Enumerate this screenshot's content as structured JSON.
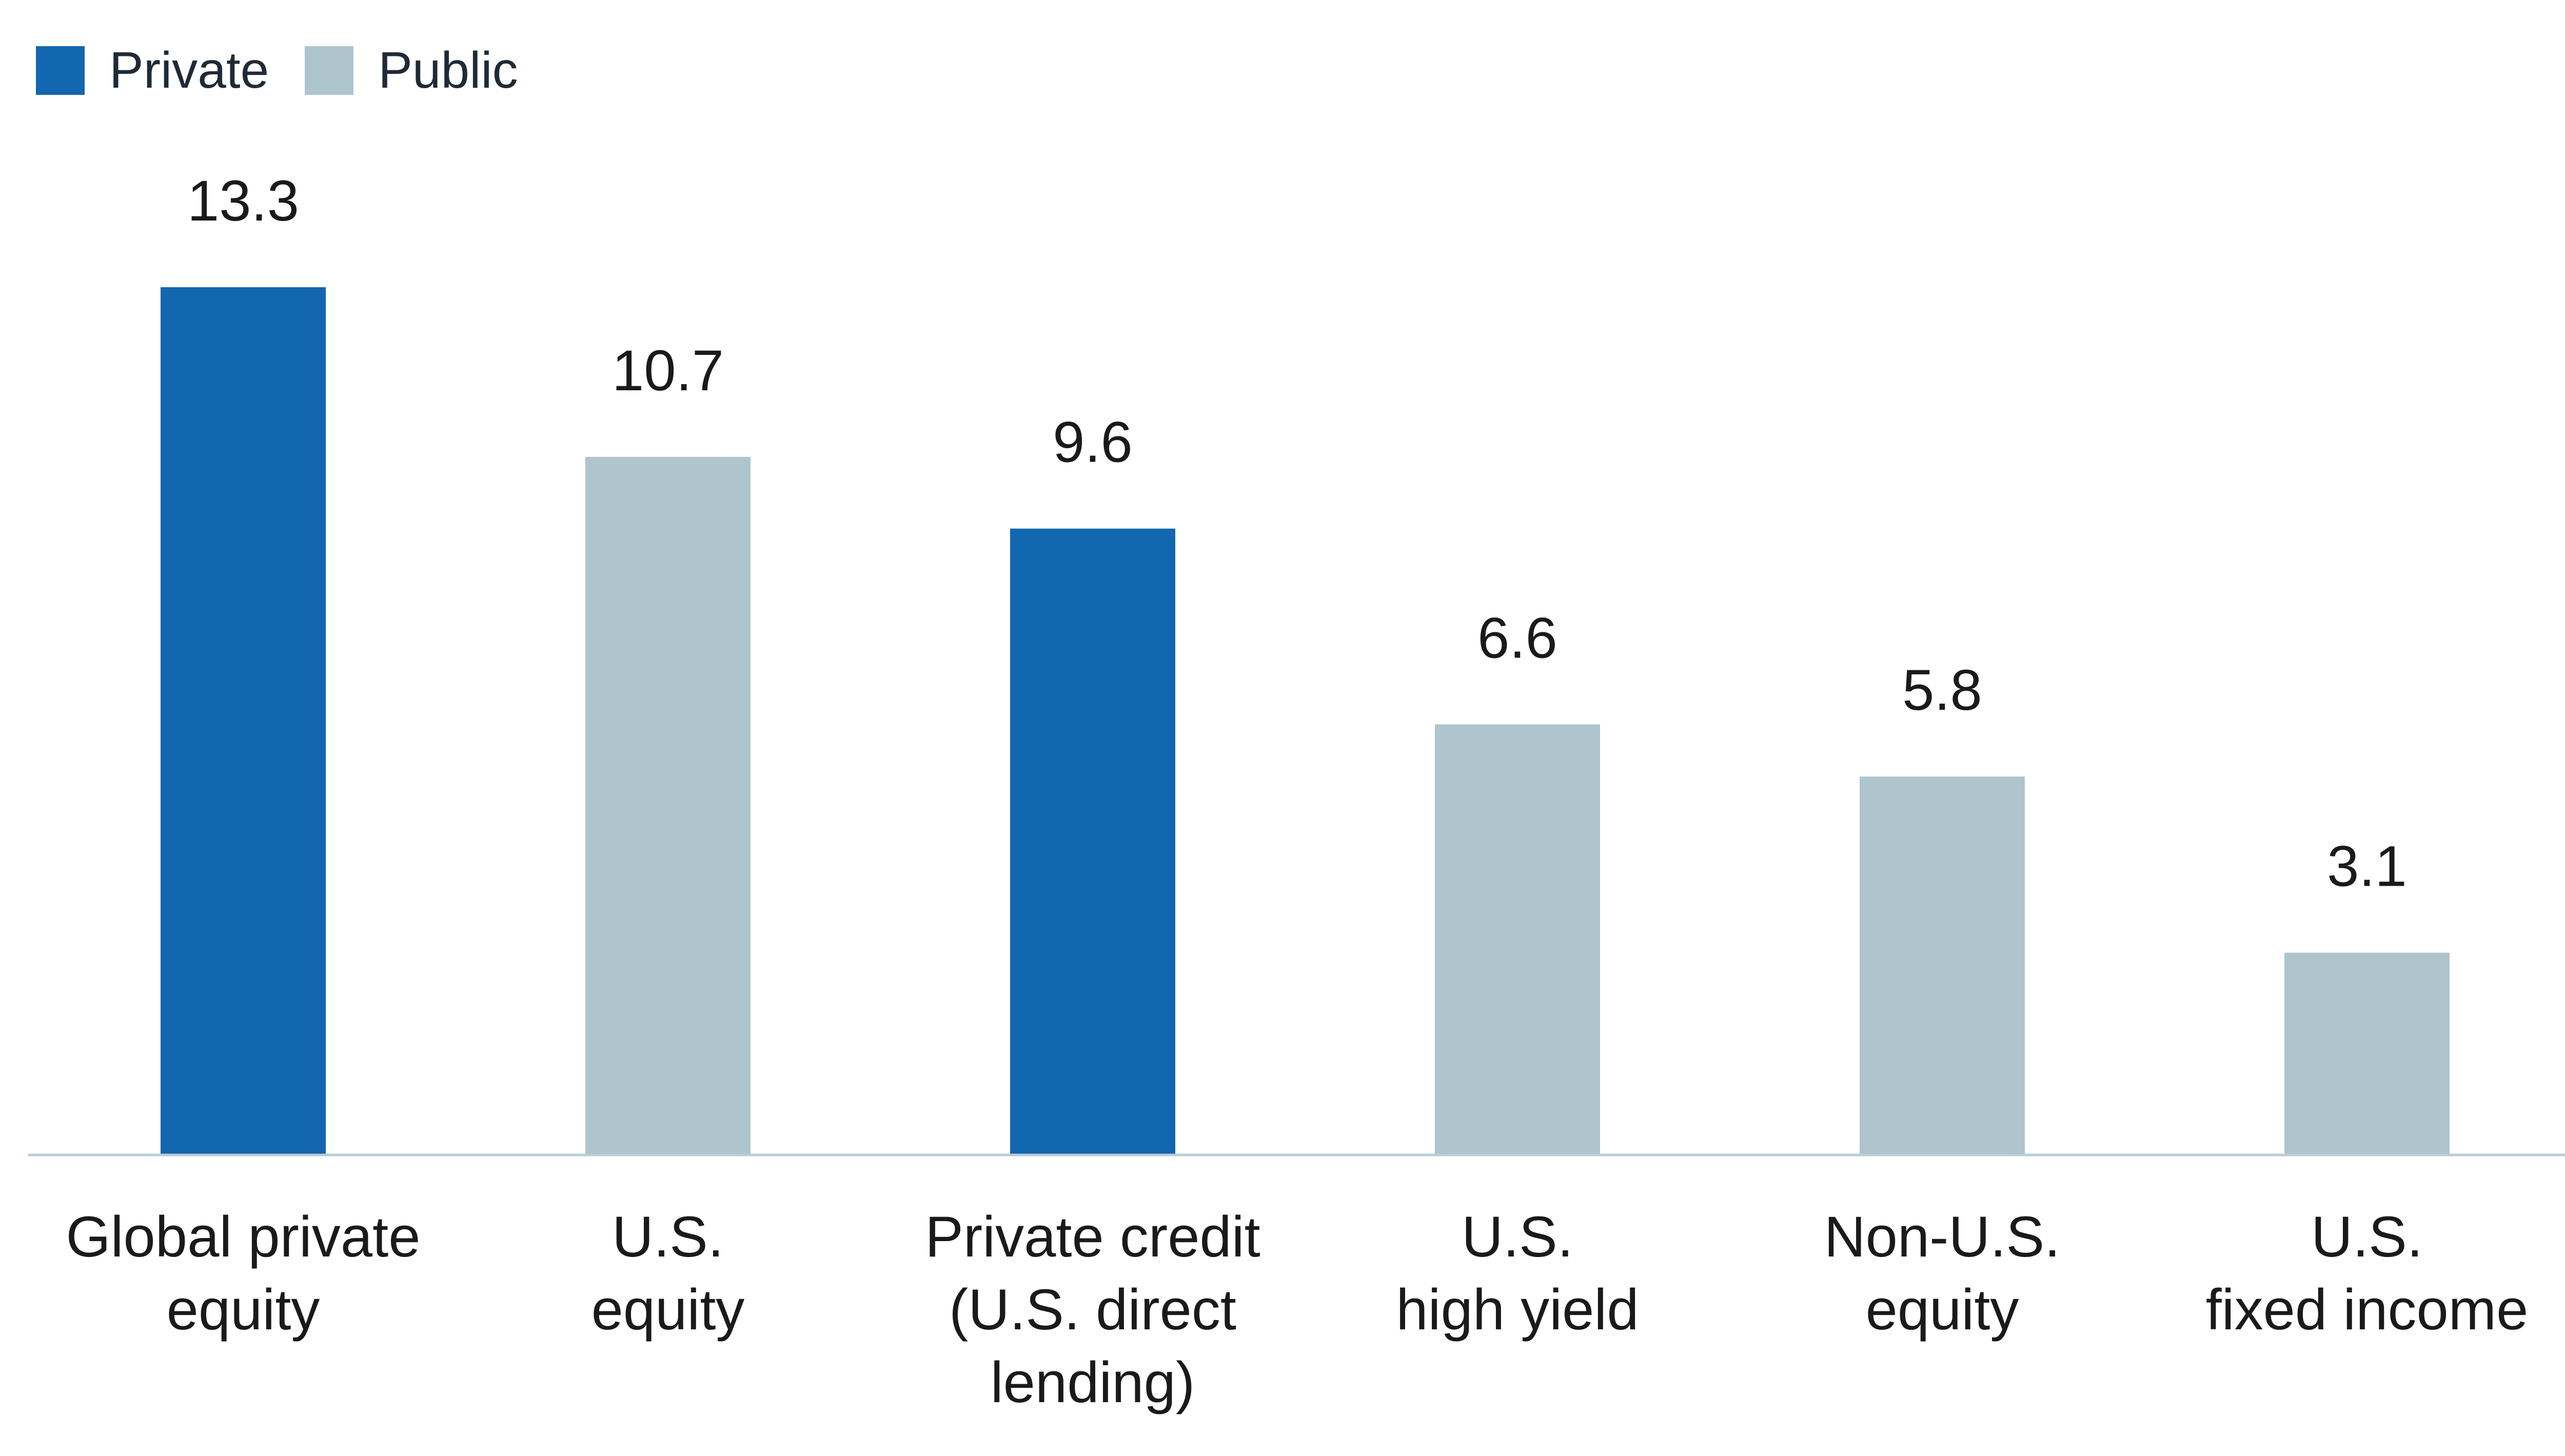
{
  "chart_data": {
    "type": "bar",
    "categories": [
      [
        "Global private",
        "equity"
      ],
      [
        "U.S.",
        "equity"
      ],
      [
        "Private credit",
        "(U.S. direct",
        "lending)"
      ],
      [
        "U.S.",
        "high yield"
      ],
      [
        "Non-U.S.",
        "equity"
      ],
      [
        "U.S.",
        "fixed income"
      ]
    ],
    "values": [
      13.3,
      10.7,
      9.6,
      6.6,
      5.8,
      3.1
    ],
    "value_labels": [
      "13.3",
      "10.7",
      "9.6",
      "6.6",
      "5.8",
      "3.1"
    ],
    "groups": [
      "Private",
      "Public",
      "Private",
      "Public",
      "Public",
      "Public"
    ],
    "legend": [
      {
        "name": "Private",
        "color": "#1366b0"
      },
      {
        "name": "Public",
        "color": "#aec5cd"
      }
    ],
    "title": "",
    "xlabel": "",
    "ylabel": "",
    "ylim": [
      0,
      13.3
    ],
    "grid": false,
    "legend_position": "top-left",
    "colors": {
      "private": "#1366b0",
      "public": "#aec5cd",
      "baseline": "#b9cdd4",
      "text": "#1a1a1a"
    }
  }
}
